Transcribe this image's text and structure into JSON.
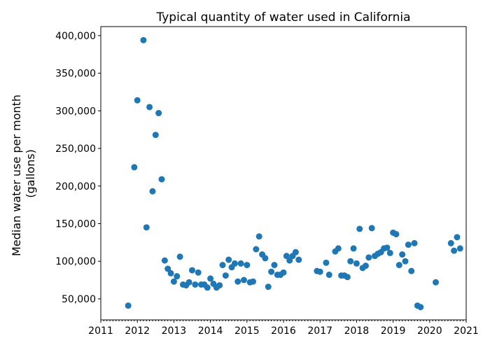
{
  "chart_data": {
    "type": "scatter",
    "title": "Typical quantity of water used in California",
    "xlabel": "",
    "ylabel_lines": [
      "Median water use per month",
      "(gallons)"
    ],
    "xlim": [
      2011,
      2021
    ],
    "ylim": [
      22000,
      412000
    ],
    "x_ticks": [
      "2011",
      "2012",
      "2013",
      "2014",
      "2015",
      "2016",
      "2017",
      "2018",
      "2019",
      "2020",
      "2021"
    ],
    "y_ticks": [
      "50,000",
      "100,000",
      "150,000",
      "200,000",
      "250,000",
      "300,000",
      "350,000",
      "400,000"
    ],
    "y_tick_values": [
      50000,
      100000,
      150000,
      200000,
      250000,
      300000,
      350000,
      400000
    ],
    "grid": false,
    "color": "#1f77b4",
    "points": [
      [
        "2011-10",
        41000
      ],
      [
        "2011-12",
        225000
      ],
      [
        "2012-01",
        314000
      ],
      [
        "2012-03",
        394000
      ],
      [
        "2012-04",
        145000
      ],
      [
        "2012-05",
        305000
      ],
      [
        "2012-06",
        193000
      ],
      [
        "2012-07",
        268000
      ],
      [
        "2012-08",
        297000
      ],
      [
        "2012-09",
        209000
      ],
      [
        "2012-10",
        101000
      ],
      [
        "2012-11",
        90000
      ],
      [
        "2012-12",
        84000
      ],
      [
        "2013-01",
        73000
      ],
      [
        "2013-02",
        80000
      ],
      [
        "2013-03",
        106000
      ],
      [
        "2013-04",
        69000
      ],
      [
        "2013-05",
        68000
      ],
      [
        "2013-06",
        72000
      ],
      [
        "2013-07",
        88000
      ],
      [
        "2013-08",
        69000
      ],
      [
        "2013-09",
        85000
      ],
      [
        "2013-10",
        69000
      ],
      [
        "2013-11",
        69000
      ],
      [
        "2013-12",
        65000
      ],
      [
        "2014-01",
        77000
      ],
      [
        "2014-02",
        70000
      ],
      [
        "2014-03",
        65000
      ],
      [
        "2014-04",
        68000
      ],
      [
        "2014-05",
        95000
      ],
      [
        "2014-06",
        81000
      ],
      [
        "2014-07",
        102000
      ],
      [
        "2014-08",
        92000
      ],
      [
        "2014-09",
        97000
      ],
      [
        "2014-10",
        73000
      ],
      [
        "2014-11",
        97000
      ],
      [
        "2014-12",
        75000
      ],
      [
        "2015-01",
        95000
      ],
      [
        "2015-02",
        72000
      ],
      [
        "2015-03",
        73000
      ],
      [
        "2015-04",
        116000
      ],
      [
        "2015-05",
        133000
      ],
      [
        "2015-06",
        109000
      ],
      [
        "2015-07",
        104000
      ],
      [
        "2015-08",
        66000
      ],
      [
        "2015-09",
        86000
      ],
      [
        "2015-10",
        95000
      ],
      [
        "2015-11",
        82000
      ],
      [
        "2015-12",
        82000
      ],
      [
        "2016-01",
        85000
      ],
      [
        "2016-02",
        107000
      ],
      [
        "2016-03",
        101000
      ],
      [
        "2016-04",
        107000
      ],
      [
        "2016-05",
        112000
      ],
      [
        "2016-06",
        102000
      ],
      [
        "2016-12",
        87000
      ],
      [
        "2017-01",
        86000
      ],
      [
        "2017-03",
        98000
      ],
      [
        "2017-04",
        82000
      ],
      [
        "2017-06",
        113000
      ],
      [
        "2017-07",
        117000
      ],
      [
        "2017-08",
        81000
      ],
      [
        "2017-09",
        81000
      ],
      [
        "2017-10",
        79000
      ],
      [
        "2017-11",
        100000
      ],
      [
        "2017-12",
        117000
      ],
      [
        "2018-01",
        97000
      ],
      [
        "2018-02",
        143000
      ],
      [
        "2018-03",
        91000
      ],
      [
        "2018-04",
        94000
      ],
      [
        "2018-05",
        105000
      ],
      [
        "2018-06",
        144000
      ],
      [
        "2018-07",
        107000
      ],
      [
        "2018-08",
        110000
      ],
      [
        "2018-09",
        112000
      ],
      [
        "2018-10",
        117000
      ],
      [
        "2018-11",
        118000
      ],
      [
        "2018-12",
        111000
      ],
      [
        "2019-01",
        138000
      ],
      [
        "2019-02",
        136000
      ],
      [
        "2019-03",
        95000
      ],
      [
        "2019-04",
        109000
      ],
      [
        "2019-05",
        100000
      ],
      [
        "2019-06",
        122000
      ],
      [
        "2019-07",
        87000
      ],
      [
        "2019-08",
        124000
      ],
      [
        "2019-09",
        41000
      ],
      [
        "2019-10",
        39000
      ],
      [
        "2020-03",
        72000
      ],
      [
        "2020-08",
        124000
      ],
      [
        "2020-09",
        114000
      ],
      [
        "2020-10",
        132000
      ],
      [
        "2020-11",
        117000
      ]
    ]
  }
}
